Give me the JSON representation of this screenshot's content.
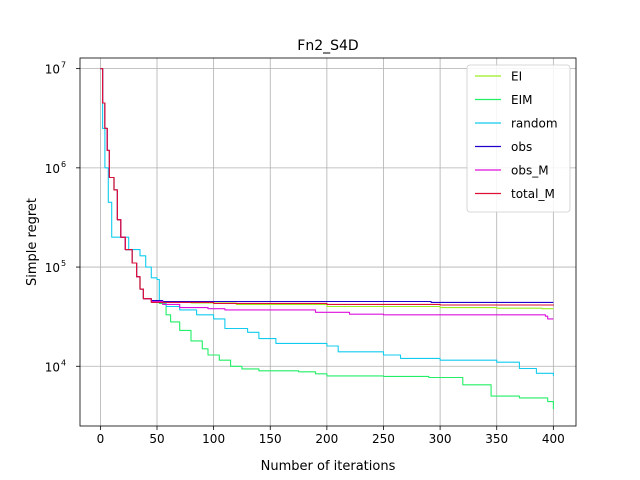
{
  "chart_data": {
    "type": "line",
    "title": "Fn2_S4D",
    "xlabel": "Number of iterations",
    "ylabel": "Simple regret",
    "xlim": [
      -18,
      420
    ],
    "ylim": [
      2500,
      12800000
    ],
    "yscale": "log",
    "grid": true,
    "legend_position": "top-right",
    "x_ticks": [
      0,
      50,
      100,
      150,
      200,
      250,
      300,
      350,
      400
    ],
    "y_ticks": [
      {
        "value": 10000,
        "base": "10",
        "exp": "4"
      },
      {
        "value": 100000,
        "base": "10",
        "exp": "5"
      },
      {
        "value": 1000000,
        "base": "10",
        "exp": "6"
      },
      {
        "value": 10000000,
        "base": "10",
        "exp": "7"
      }
    ],
    "series": [
      {
        "name": "EI",
        "color": "#99ee22",
        "points": [
          [
            0,
            10000000
          ],
          [
            2,
            4500000
          ],
          [
            4,
            2500000
          ],
          [
            6,
            1500000
          ],
          [
            8,
            800000
          ],
          [
            12,
            600000
          ],
          [
            15,
            300000
          ],
          [
            18,
            200000
          ],
          [
            22,
            150000
          ],
          [
            28,
            110000
          ],
          [
            32,
            80000
          ],
          [
            35,
            60000
          ],
          [
            38,
            48000
          ],
          [
            45,
            45000
          ],
          [
            55,
            44000
          ],
          [
            80,
            43500
          ],
          [
            120,
            42000
          ],
          [
            200,
            40000
          ],
          [
            300,
            39000
          ],
          [
            350,
            38500
          ],
          [
            390,
            38000
          ],
          [
            400,
            38000
          ]
        ]
      },
      {
        "name": "EIM",
        "color": "#22ee66",
        "points": [
          [
            0,
            10000000
          ],
          [
            2,
            4500000
          ],
          [
            4,
            2500000
          ],
          [
            6,
            1500000
          ],
          [
            8,
            800000
          ],
          [
            12,
            600000
          ],
          [
            15,
            300000
          ],
          [
            18,
            200000
          ],
          [
            22,
            150000
          ],
          [
            28,
            110000
          ],
          [
            32,
            80000
          ],
          [
            35,
            60000
          ],
          [
            38,
            48000
          ],
          [
            45,
            45000
          ],
          [
            52,
            43000
          ],
          [
            58,
            33000
          ],
          [
            62,
            28000
          ],
          [
            70,
            23000
          ],
          [
            80,
            18000
          ],
          [
            90,
            15000
          ],
          [
            95,
            13000
          ],
          [
            105,
            11500
          ],
          [
            115,
            10000
          ],
          [
            125,
            9400
          ],
          [
            140,
            9000
          ],
          [
            175,
            8800
          ],
          [
            190,
            8400
          ],
          [
            200,
            8000
          ],
          [
            250,
            7900
          ],
          [
            290,
            7700
          ],
          [
            320,
            7600
          ],
          [
            320,
            6500
          ],
          [
            345,
            6200
          ],
          [
            345,
            5000
          ],
          [
            370,
            4800
          ],
          [
            395,
            4400
          ],
          [
            400,
            3700
          ]
        ]
      },
      {
        "name": "random",
        "color": "#11ccee",
        "points": [
          [
            0,
            10000000
          ],
          [
            2,
            2500000
          ],
          [
            4,
            1000000
          ],
          [
            7,
            450000
          ],
          [
            10,
            200000
          ],
          [
            20,
            200000
          ],
          [
            25,
            150000
          ],
          [
            35,
            130000
          ],
          [
            40,
            100000
          ],
          [
            45,
            78000
          ],
          [
            50,
            75000
          ],
          [
            52,
            45000
          ],
          [
            58,
            40000
          ],
          [
            70,
            37000
          ],
          [
            85,
            33000
          ],
          [
            100,
            30000
          ],
          [
            110,
            24000
          ],
          [
            130,
            22000
          ],
          [
            140,
            19000
          ],
          [
            155,
            17000
          ],
          [
            200,
            16000
          ],
          [
            210,
            14000
          ],
          [
            250,
            13000
          ],
          [
            265,
            12000
          ],
          [
            300,
            11500
          ],
          [
            350,
            11000
          ],
          [
            370,
            9500
          ],
          [
            385,
            8500
          ],
          [
            400,
            8000
          ]
        ]
      },
      {
        "name": "obs",
        "color": "#2200cc",
        "points": [
          [
            0,
            10000000
          ],
          [
            2,
            4500000
          ],
          [
            4,
            2500000
          ],
          [
            6,
            1500000
          ],
          [
            8,
            800000
          ],
          [
            12,
            600000
          ],
          [
            15,
            300000
          ],
          [
            18,
            200000
          ],
          [
            22,
            150000
          ],
          [
            28,
            110000
          ],
          [
            32,
            80000
          ],
          [
            35,
            60000
          ],
          [
            38,
            48000
          ],
          [
            45,
            46000
          ],
          [
            55,
            45000
          ],
          [
            290,
            45000
          ],
          [
            292,
            44000
          ],
          [
            400,
            44000
          ]
        ]
      },
      {
        "name": "obs_M",
        "color": "#dd11dd",
        "points": [
          [
            0,
            10000000
          ],
          [
            2,
            4500000
          ],
          [
            4,
            2500000
          ],
          [
            6,
            1500000
          ],
          [
            8,
            800000
          ],
          [
            12,
            600000
          ],
          [
            15,
            300000
          ],
          [
            18,
            200000
          ],
          [
            22,
            150000
          ],
          [
            28,
            110000
          ],
          [
            32,
            80000
          ],
          [
            35,
            60000
          ],
          [
            38,
            48000
          ],
          [
            45,
            45000
          ],
          [
            55,
            42000
          ],
          [
            70,
            39000
          ],
          [
            95,
            38000
          ],
          [
            110,
            37000
          ],
          [
            160,
            37000
          ],
          [
            190,
            35000
          ],
          [
            220,
            33500
          ],
          [
            250,
            33000
          ],
          [
            350,
            33000
          ],
          [
            393,
            32000
          ],
          [
            395,
            30000
          ],
          [
            400,
            30000
          ]
        ]
      },
      {
        "name": "total_M",
        "color": "#dd1133",
        "points": [
          [
            0,
            10000000
          ],
          [
            2,
            4500000
          ],
          [
            4,
            2500000
          ],
          [
            6,
            1500000
          ],
          [
            8,
            800000
          ],
          [
            12,
            600000
          ],
          [
            15,
            300000
          ],
          [
            18,
            200000
          ],
          [
            22,
            150000
          ],
          [
            28,
            110000
          ],
          [
            32,
            80000
          ],
          [
            35,
            60000
          ],
          [
            38,
            48000
          ],
          [
            45,
            44000
          ],
          [
            100,
            43000
          ],
          [
            200,
            42000
          ],
          [
            300,
            41500
          ],
          [
            400,
            41000
          ]
        ]
      }
    ]
  }
}
